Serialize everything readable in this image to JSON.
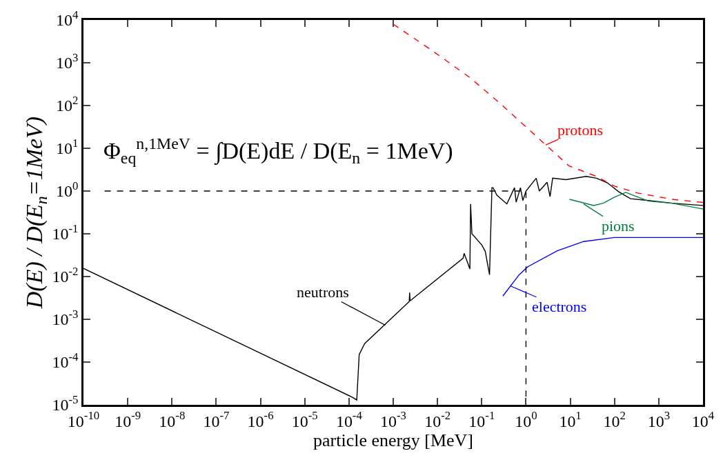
{
  "chart_data": {
    "type": "line",
    "xlabel": "particle energy [MeV]",
    "ylabel": "D(E) / D(E$_{n}$=1MeV)",
    "log": "xy",
    "marker": "none",
    "xlim": [
      1e-10,
      10000
    ],
    "ylim": [
      1e-05,
      10000
    ],
    "xticks": [
      {
        "value": 1e-10,
        "label": "10$^{-10}$"
      },
      {
        "value": 1e-09,
        "label": "10$^{-9}$"
      },
      {
        "value": 1e-08,
        "label": "10$^{-8}$"
      },
      {
        "value": 1e-07,
        "label": "10$^{-7}$"
      },
      {
        "value": 1e-06,
        "label": "10$^{-6}$"
      },
      {
        "value": 1e-05,
        "label": "10$^{-5}$"
      },
      {
        "value": 0.0001,
        "label": "10$^{-4}$"
      },
      {
        "value": 0.001,
        "label": "10$^{-3}$"
      },
      {
        "value": 0.01,
        "label": "10$^{-2}$"
      },
      {
        "value": 0.1,
        "label": "10$^{-1}$"
      },
      {
        "value": 1,
        "label": "10$^{0}$"
      },
      {
        "value": 10,
        "label": "10$^{1}$"
      },
      {
        "value": 100,
        "label": "10$^{2}$"
      },
      {
        "value": 1000,
        "label": "10$^{3}$"
      },
      {
        "value": 10000,
        "label": "10$^{4}$"
      }
    ],
    "yticks": [
      {
        "value": 1e-05,
        "label": "10$^{-5}$"
      },
      {
        "value": 0.0001,
        "label": "10$^{-4}$"
      },
      {
        "value": 0.001,
        "label": "10$^{-3}$"
      },
      {
        "value": 0.01,
        "label": "10$^{-2}$"
      },
      {
        "value": 0.1,
        "label": "10$^{-1}$"
      },
      {
        "value": 1,
        "label": "10$^{0}$"
      },
      {
        "value": 10,
        "label": "10$^{1}$"
      },
      {
        "value": 100,
        "label": "10$^{2}$"
      },
      {
        "value": 1000,
        "label": "10$^{3}$"
      },
      {
        "value": 10000,
        "label": "10$^{4}$"
      }
    ],
    "series": [
      {
        "color": "#000000",
        "line_style": "solid",
        "x": [
          1e-10,
          0.00012,
          0.00015,
          0.00017,
          0.000226,
          0.0023,
          0.00235,
          0.0024,
          0.038,
          0.04,
          0.054,
          0.056,
          0.06,
          0.1,
          0.12,
          0.15,
          0.17,
          0.18,
          0.22,
          0.37,
          0.55,
          0.6,
          0.75,
          0.85,
          1.0,
          1.7,
          2.0,
          3.0,
          3.5,
          4.0,
          8,
          23,
          39,
          69,
          125,
          230,
          590,
          2000,
          10000
        ],
        "values": [
          0.0155,
          1.5e-05,
          1.3e-05,
          0.00015,
          0.00027,
          0.0026,
          0.0042,
          0.0027,
          0.027,
          0.035,
          0.015,
          0.5,
          0.1,
          0.055,
          0.039,
          0.011,
          1.2,
          1.2,
          0.8,
          0.5,
          1.2,
          0.55,
          1.2,
          0.6,
          1.0,
          2.0,
          1.0,
          1.6,
          0.74,
          2.0,
          1.85,
          2.2,
          2.0,
          1.56,
          0.96,
          0.66,
          0.6,
          0.52,
          0.46
        ]
      },
      {
        "color": "#ff0000",
        "line_style": "dashed",
        "x": [
          0.001,
          0.0072,
          0.054,
          0.26,
          2.8,
          9.3,
          39,
          100,
          330,
          2000,
          10000
        ],
        "values": [
          8000,
          2000,
          450,
          112,
          12,
          3.9,
          2.2,
          1.3,
          0.9,
          0.64,
          0.54
        ]
      },
      {
        "color": "#008040",
        "line_style": "solid",
        "x": [
          9.6,
          34,
          56,
          100,
          180,
          290,
          590,
          2000,
          10000
        ],
        "values": [
          0.64,
          0.46,
          0.52,
          0.72,
          0.93,
          0.77,
          0.58,
          0.52,
          0.38
        ]
      },
      {
        "color": "#0000ff",
        "line_style": "solid",
        "x": [
          0.3,
          0.7,
          1.1,
          5.1,
          20,
          100,
          10000
        ],
        "values": [
          0.0035,
          0.011,
          0.017,
          0.04,
          0.066,
          0.082,
          0.082
        ]
      },
      {
        "color": "#000000",
        "line_style": "dashed",
        "x": [
          3e-10,
          1,
          1
        ],
        "values": [
          1,
          1,
          1e-05
        ]
      }
    ],
    "annotations": [
      {
        "text": "neutrons",
        "x": 0.00066,
        "y": 0.00073
      },
      {
        "text": "protons",
        "x": 2.8,
        "y": 12
      },
      {
        "text": "pions",
        "x": 20,
        "y": 0.5
      },
      {
        "text": "electrons",
        "x": 0.45,
        "y": 0.006
      },
      "Φ$_{eq}$$^{n,1MeV}$ = ∫D(E)dE / D(E$_{n}$ = 1MeV)"
    ]
  }
}
